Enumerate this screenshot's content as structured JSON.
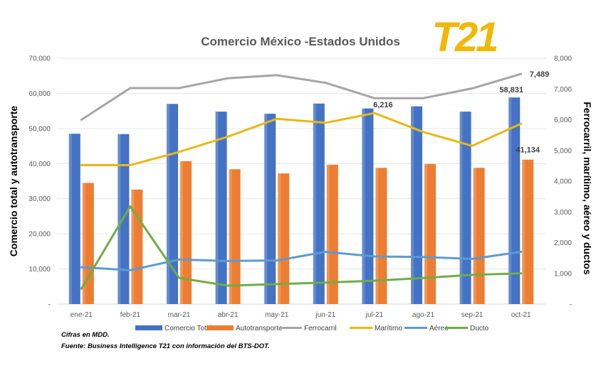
{
  "chart_data": {
    "type": "bar",
    "title": "Comercio México -Estados Unidos",
    "logo_text": "T21",
    "ylabel_left": "Comercio total y autotransporte",
    "ylabel_right": "Ferrocarril, marítimo, aéreo y ductos",
    "categories": [
      "ene-21",
      "feb-21",
      "mar-21",
      "abr-21",
      "may-21",
      "jun-21",
      "jul-21",
      "ago-21",
      "sep-21",
      "oct-21"
    ],
    "left_axis": {
      "min": 0,
      "max": 70000,
      "ticks": [
        "-",
        "10,000",
        "20,000",
        "30,000",
        "40,000",
        "50,000",
        "60,000",
        "70,000"
      ]
    },
    "right_axis": {
      "min": 0,
      "max": 8000,
      "ticks": [
        "-",
        "1,000",
        "2,000",
        "3,000",
        "4,000",
        "5,000",
        "6,000",
        "7,000",
        "8,000"
      ]
    },
    "bar_series": [
      {
        "name": "Comercio Total",
        "color": "#4472C4",
        "values": [
          48500,
          48400,
          57000,
          54800,
          54200,
          57100,
          55700,
          56300,
          54800,
          58831
        ]
      },
      {
        "name": "Autotransporte",
        "color": "#ED7D31",
        "values": [
          34500,
          32600,
          40700,
          38400,
          37200,
          39700,
          38800,
          39900,
          38800,
          41134
        ]
      }
    ],
    "line_series": [
      {
        "name": "Ferrocarril",
        "color": "#A5A5A5",
        "values": [
          6000,
          7030,
          7030,
          7350,
          7450,
          7200,
          6700,
          6700,
          7020,
          7489
        ]
      },
      {
        "name": "Marítimo",
        "color": "#E8B915",
        "values": [
          4520,
          4520,
          4950,
          5450,
          6030,
          5900,
          6216,
          5600,
          5150,
          5870
        ]
      },
      {
        "name": "Aéreo",
        "color": "#5B9BD5",
        "values": [
          1200,
          1100,
          1450,
          1400,
          1420,
          1700,
          1550,
          1530,
          1470,
          1700
        ]
      },
      {
        "name": "Ducto",
        "color": "#70AD47",
        "values": [
          500,
          3180,
          850,
          600,
          650,
          700,
          760,
          850,
          950,
          1000
        ]
      }
    ],
    "data_labels": [
      {
        "series": "Comercio Total",
        "index": 9,
        "text": "58,831"
      },
      {
        "series": "Autotransporte",
        "index": 9,
        "text": "41,134"
      },
      {
        "series": "Ferrocarril",
        "index": 9,
        "text": "7,489"
      },
      {
        "series": "Marítimo",
        "index": 6,
        "text": "6,216"
      }
    ],
    "legend_position": "bottom",
    "notes": [
      "Cifras en MDD.",
      "Fuente: Business Intelligence T21 con información del BTS-DOT."
    ]
  }
}
